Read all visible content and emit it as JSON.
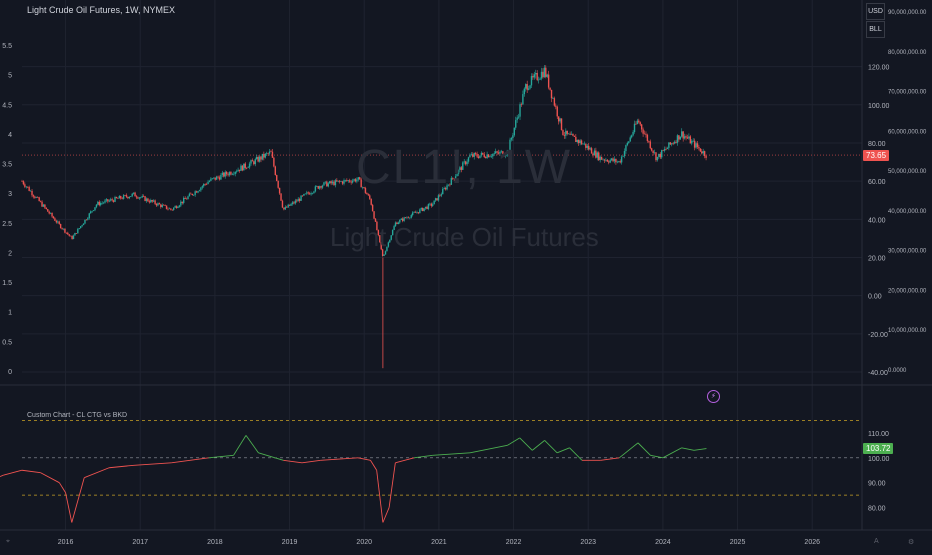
{
  "header": {
    "title": "Light Crude Oil Futures, 1W, NYMEX",
    "currency_label": "USD",
    "unit_label": "BLL"
  },
  "watermark": {
    "symbol": "CL1!, 1W",
    "description": "Light Crude Oil Futures"
  },
  "indicator": {
    "title": "Custom Chart - CL CTG vs BKD"
  },
  "colors": {
    "background": "#131722",
    "up": "#26a69a",
    "down": "#ef5350",
    "grid": "#1f2330",
    "axis_text": "#b2b5be",
    "price_tag": "#ef5350",
    "indicator_tag": "#4caf50",
    "dashed_line": "#c9a227"
  },
  "icons": {
    "alert": "lightning-icon",
    "settings": "gear-icon"
  },
  "chart_data": [
    {
      "type": "candlestick",
      "series": [
        {
          "name": "CL1!",
          "current_value_label": "73.65"
        }
      ],
      "x": [
        "2015-01",
        "2015-06",
        "2015-12",
        "2016-02",
        "2016-06",
        "2016-12",
        "2017-06",
        "2017-12",
        "2018-06",
        "2018-10",
        "2018-12",
        "2019-06",
        "2019-12",
        "2020-02",
        "2020-04",
        "2020-06",
        "2020-12",
        "2021-06",
        "2021-12",
        "2022-03",
        "2022-06",
        "2022-09",
        "2022-12",
        "2023-03",
        "2023-06",
        "2023-09",
        "2023-12",
        "2024-04",
        "2024-08"
      ],
      "close": [
        48,
        60,
        37,
        30,
        48,
        53,
        45,
        60,
        68,
        75,
        45,
        58,
        61,
        50,
        20,
        38,
        48,
        73,
        75,
        110,
        118,
        85,
        80,
        72,
        70,
        92,
        72,
        85,
        73.65
      ],
      "xticks": [
        "2016",
        "2017",
        "2018",
        "2019",
        "2020",
        "2021",
        "2022",
        "2023",
        "2024",
        "2025",
        "2026"
      ],
      "yticks_left": [
        "0",
        "0.5",
        "1",
        "1.5",
        "2",
        "2.5",
        "3",
        "3.5",
        "4",
        "4.5",
        "5",
        "5.5"
      ],
      "yticks_right": [
        "-40.00",
        "-20.00",
        "0.00",
        "20.00",
        "40.00",
        "60.00",
        "80.00",
        "100.00",
        "120.00"
      ],
      "yticks_far_right": [
        "0.0000",
        "10,000,000.00",
        "20,000,000.00",
        "30,000,000.00",
        "40,000,000.00",
        "50,000,000.00",
        "60,000,000.00",
        "70,000,000.00",
        "80,000,000.00",
        "90,000,000.00"
      ],
      "ylim": [
        -40,
        135
      ]
    },
    {
      "type": "line",
      "series": [
        {
          "name": "Custom Chart - CL CTG vs BKD",
          "current_value_label": "103.72"
        }
      ],
      "x": [
        "2015-01",
        "2015-03",
        "2015-06",
        "2015-09",
        "2015-12",
        "2016-01",
        "2016-02",
        "2016-04",
        "2016-08",
        "2016-12",
        "2017-06",
        "2017-12",
        "2018-04",
        "2018-06",
        "2018-08",
        "2018-12",
        "2019-03",
        "2019-06",
        "2019-12",
        "2020-02",
        "2020-03",
        "2020-04",
        "2020-05",
        "2020-06",
        "2020-09",
        "2020-12",
        "2021-06",
        "2021-12",
        "2022-02",
        "2022-04",
        "2022-06",
        "2022-08",
        "2022-10",
        "2022-12",
        "2023-03",
        "2023-06",
        "2023-09",
        "2023-11",
        "2024-01",
        "2024-04",
        "2024-06",
        "2024-08"
      ],
      "y": [
        91,
        93,
        95,
        94,
        90,
        86,
        74,
        92,
        96,
        97,
        98,
        100,
        101,
        109,
        102,
        99,
        98,
        99,
        100,
        99,
        95,
        74,
        80,
        98,
        100,
        101,
        102,
        105,
        108,
        103,
        107,
        102,
        104,
        99,
        99,
        100,
        106,
        101,
        100,
        104,
        103,
        103.72
      ],
      "yticks": [
        "80.00",
        "90.00",
        "100.00",
        "110.00"
      ],
      "ylim": [
        75,
        116
      ],
      "reference_lines": [
        85,
        100,
        115
      ]
    }
  ]
}
